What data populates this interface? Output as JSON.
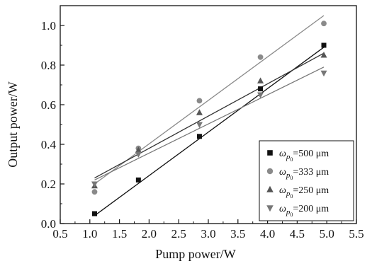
{
  "chart_data": {
    "type": "scatter",
    "xlabel": "Pump power/W",
    "ylabel": "Output power/W",
    "xlim": [
      0.5,
      5.5
    ],
    "ylim": [
      0.0,
      1.1
    ],
    "xticks": [
      "0.5",
      "1.0",
      "1.5",
      "2.0",
      "2.5",
      "3.0",
      "3.5",
      "4.0",
      "4.5",
      "5.0",
      "5.5"
    ],
    "yticks": [
      "0.0",
      "0.2",
      "0.4",
      "0.6",
      "0.8",
      "1.0"
    ],
    "grid": false,
    "legend_position": "bottom-right",
    "legend_symbol": "ω",
    "legend_sub": "p",
    "legend_subsub": "0",
    "series": [
      {
        "name": "=500 μm",
        "marker": "square",
        "color": "#111111",
        "line_color": "#111111",
        "x": [
          1.08,
          1.82,
          2.85,
          3.88,
          4.95
        ],
        "y": [
          0.05,
          0.22,
          0.44,
          0.68,
          0.9
        ],
        "fit": [
          [
            1.08,
            0.04
          ],
          [
            4.95,
            0.89
          ]
        ]
      },
      {
        "name": "=333 μm",
        "marker": "circle",
        "color": "#8a8a8a",
        "line_color": "#8a8a8a",
        "x": [
          1.08,
          1.82,
          2.85,
          3.88,
          4.95
        ],
        "y": [
          0.16,
          0.38,
          0.62,
          0.84,
          1.01
        ],
        "fit": [
          [
            1.08,
            0.2
          ],
          [
            4.95,
            1.05
          ]
        ]
      },
      {
        "name": "=250 μm",
        "marker": "triangle-up",
        "color": "#555555",
        "line_color": "#333333",
        "x": [
          1.08,
          1.82,
          2.85,
          3.88,
          4.95
        ],
        "y": [
          0.19,
          0.37,
          0.56,
          0.72,
          0.85
        ],
        "fit": [
          [
            1.08,
            0.23
          ],
          [
            4.95,
            0.86
          ]
        ]
      },
      {
        "name": "=200 μm",
        "marker": "triangle-down",
        "color": "#777777",
        "line_color": "#777777",
        "x": [
          1.08,
          1.82,
          2.85,
          3.88,
          4.95
        ],
        "y": [
          0.2,
          0.35,
          0.5,
          0.65,
          0.76
        ],
        "fit": [
          [
            1.08,
            0.22
          ],
          [
            4.95,
            0.79
          ]
        ]
      }
    ]
  }
}
